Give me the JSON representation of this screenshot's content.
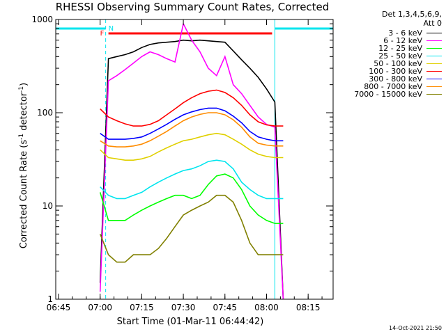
{
  "chart_data": {
    "type": "line",
    "title": "RHESSI Observing Summary Count Rates, Corrected",
    "xlabel": "Start Time (01-Mar-11 06:44:42)",
    "ylabel_main": "Corrected Count Rate (s",
    "ylabel_sup1": "-1",
    "ylabel_mid": " detector",
    "ylabel_sup2": "-1",
    "ylabel_end": ")",
    "y_scale": "log",
    "xlim": [
      "06:44",
      "08:24"
    ],
    "ylim": [
      1,
      1000
    ],
    "x_ticks": [
      "06:45",
      "07:00",
      "07:15",
      "07:30",
      "07:45",
      "08:00",
      "08:15"
    ],
    "y_ticks": [
      "1",
      "10",
      "100",
      "1000"
    ],
    "legend_position": "top-right (outside plot)",
    "legend_header": [
      "Det 1,3,4,5,6,9,",
      "Att 0"
    ],
    "timestamp": "14-Oct-2021 21:50",
    "flags": {
      "N_label": "N",
      "F_label": "F",
      "night_color": "#00e5ee",
      "flare_color": "#ff0000",
      "night_intervals": [
        [
          "06:44",
          "07:02"
        ],
        [
          "08:03",
          "08:24"
        ]
      ],
      "flare_interval": [
        "07:03",
        "08:02"
      ]
    },
    "x": [
      "07:00",
      "07:03",
      "07:06",
      "07:09",
      "07:12",
      "07:15",
      "07:18",
      "07:21",
      "07:24",
      "07:27",
      "07:30",
      "07:33",
      "07:36",
      "07:39",
      "07:42",
      "07:45",
      "07:48",
      "07:51",
      "07:54",
      "07:57",
      "08:00",
      "08:03",
      "08:06"
    ],
    "series": [
      {
        "name": "3 - 6 keV",
        "color": "#000000",
        "values": [
          1.5,
          380,
          400,
          420,
          450,
          500,
          540,
          560,
          570,
          580,
          600,
          590,
          600,
          590,
          580,
          570,
          460,
          370,
          300,
          240,
          180,
          130,
          1
        ]
      },
      {
        "name": "6 - 12 keV",
        "color": "#ff00ff",
        "values": [
          1.2,
          220,
          250,
          290,
          340,
          400,
          450,
          420,
          380,
          350,
          900,
          600,
          450,
          300,
          250,
          400,
          200,
          160,
          120,
          90,
          75,
          70,
          1
        ]
      },
      {
        "name": "12 - 25 keV",
        "color": "#00ff00",
        "values": [
          14,
          7,
          7,
          7,
          8,
          9,
          10,
          11,
          12,
          13,
          13,
          12,
          13,
          17,
          21,
          22,
          20,
          15,
          10,
          8,
          7,
          6.5,
          6.5
        ]
      },
      {
        "name": "25 - 50 keV",
        "color": "#00e5ee",
        "values": [
          16,
          13,
          12,
          12,
          13,
          14,
          16,
          18,
          20,
          22,
          24,
          25,
          27,
          30,
          31,
          30,
          25,
          18,
          15,
          13,
          12,
          12,
          12
        ]
      },
      {
        "name": "50 - 100 keV",
        "color": "#e0d000",
        "values": [
          40,
          33,
          32,
          31,
          31,
          32,
          34,
          38,
          42,
          46,
          50,
          52,
          55,
          58,
          60,
          58,
          52,
          46,
          40,
          36,
          34,
          33,
          33
        ]
      },
      {
        "name": "100 - 300 keV",
        "color": "#ff0000",
        "values": [
          110,
          90,
          82,
          76,
          72,
          72,
          75,
          82,
          95,
          110,
          128,
          145,
          160,
          170,
          175,
          165,
          145,
          120,
          95,
          80,
          74,
          72,
          72
        ]
      },
      {
        "name": "300 - 800 keV",
        "color": "#0000ff",
        "values": [
          60,
          52,
          52,
          52,
          53,
          55,
          60,
          67,
          75,
          85,
          95,
          102,
          108,
          112,
          112,
          105,
          92,
          78,
          63,
          55,
          52,
          50,
          50
        ]
      },
      {
        "name": "800 - 7000 keV",
        "color": "#ff8c00",
        "values": [
          50,
          44,
          43,
          43,
          44,
          46,
          50,
          56,
          63,
          72,
          82,
          90,
          96,
          100,
          100,
          95,
          84,
          70,
          55,
          47,
          45,
          44,
          44
        ]
      },
      {
        "name": "7000 - 15000 keV",
        "color": "#808000",
        "values": [
          5,
          3,
          2.5,
          2.5,
          3,
          3,
          3,
          3.5,
          4.5,
          6,
          8,
          9,
          10,
          11,
          13,
          13,
          11,
          7,
          4,
          3,
          3,
          3,
          3
        ]
      }
    ]
  }
}
